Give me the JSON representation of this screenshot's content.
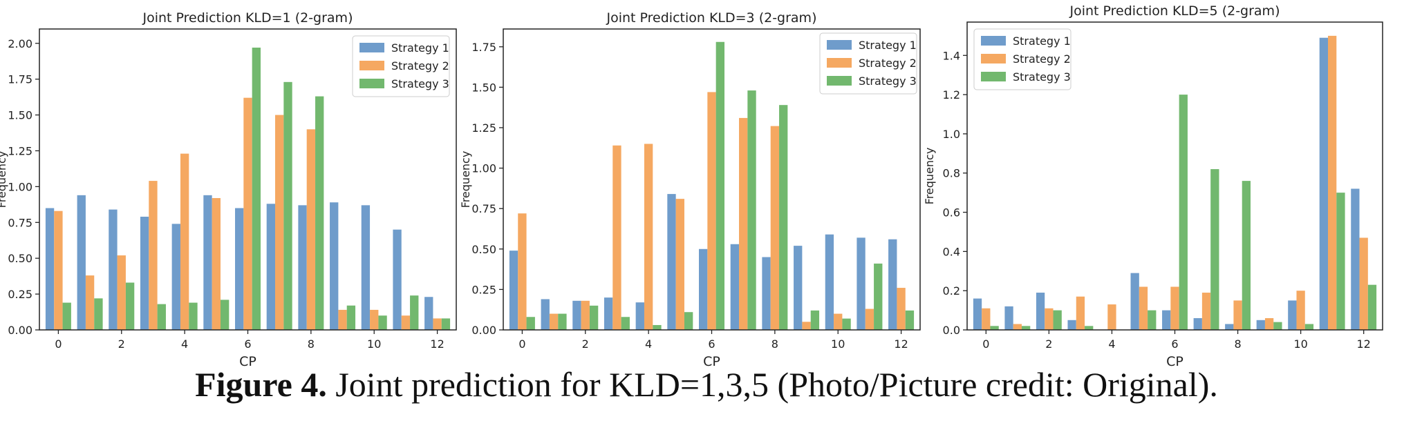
{
  "figure": {
    "caption_label": "Figure 4.",
    "caption_text": " Joint prediction for KLD=1,3,5 (Photo/Picture credit: Original)."
  },
  "colors": {
    "Strategy 1": "#6f9ccb",
    "Strategy 2": "#f5a861",
    "Strategy 3": "#72b86e"
  },
  "chart_data": [
    {
      "type": "bar",
      "title": "Joint Prediction KLD=1 (2-gram)",
      "xlabel": "CP",
      "ylabel": "Frequency",
      "categories": [
        0,
        1,
        2,
        3,
        4,
        5,
        6,
        7,
        8,
        9,
        10,
        11,
        12
      ],
      "x_ticks": [
        0,
        2,
        4,
        6,
        8,
        10,
        12
      ],
      "ylim": [
        0,
        2.1
      ],
      "y_ticks": [
        "0.00",
        "0.25",
        "0.50",
        "0.75",
        "1.00",
        "1.25",
        "1.50",
        "1.75",
        "2.00"
      ],
      "legend_position": "top-right",
      "series": [
        {
          "name": "Strategy 1",
          "values": [
            0.85,
            0.94,
            0.84,
            0.79,
            0.74,
            0.94,
            0.85,
            0.88,
            0.87,
            0.89,
            0.87,
            0.7,
            0.23
          ]
        },
        {
          "name": "Strategy 2",
          "values": [
            0.83,
            0.38,
            0.52,
            1.04,
            1.23,
            0.92,
            1.62,
            1.5,
            1.4,
            0.14,
            0.14,
            0.1,
            0.08
          ]
        },
        {
          "name": "Strategy 3",
          "values": [
            0.19,
            0.22,
            0.33,
            0.18,
            0.19,
            0.21,
            1.97,
            1.73,
            1.63,
            0.17,
            0.1,
            0.24,
            0.08
          ]
        }
      ]
    },
    {
      "type": "bar",
      "title": "Joint Prediction KLD=3 (2-gram)",
      "xlabel": "CP",
      "ylabel": "Frequency",
      "categories": [
        0,
        1,
        2,
        3,
        4,
        5,
        6,
        7,
        8,
        9,
        10,
        11,
        12
      ],
      "x_ticks": [
        0,
        2,
        4,
        6,
        8,
        10,
        12
      ],
      "ylim": [
        0,
        1.86
      ],
      "y_ticks": [
        "0.00",
        "0.25",
        "0.50",
        "0.75",
        "1.00",
        "1.25",
        "1.50",
        "1.75"
      ],
      "legend_position": "top-right",
      "series": [
        {
          "name": "Strategy 1",
          "values": [
            0.49,
            0.19,
            0.18,
            0.2,
            0.17,
            0.84,
            0.5,
            0.53,
            0.45,
            0.52,
            0.59,
            0.57,
            0.56
          ]
        },
        {
          "name": "Strategy 2",
          "values": [
            0.72,
            0.1,
            0.18,
            1.14,
            1.15,
            0.81,
            1.47,
            1.31,
            1.26,
            0.05,
            0.1,
            0.13,
            0.26
          ]
        },
        {
          "name": "Strategy 3",
          "values": [
            0.08,
            0.1,
            0.15,
            0.08,
            0.03,
            0.11,
            1.78,
            1.48,
            1.39,
            0.12,
            0.07,
            0.41,
            0.12
          ]
        }
      ]
    },
    {
      "type": "bar",
      "title": "Joint Prediction KLD=5 (2-gram)",
      "xlabel": "CP",
      "ylabel": "Frequency",
      "categories": [
        0,
        1,
        2,
        3,
        4,
        5,
        6,
        7,
        8,
        9,
        10,
        11,
        12
      ],
      "x_ticks": [
        0,
        2,
        4,
        6,
        8,
        10,
        12
      ],
      "ylim": [
        0,
        1.57
      ],
      "y_ticks": [
        "0.0",
        "0.2",
        "0.4",
        "0.6",
        "0.8",
        "1.0",
        "1.2",
        "1.4"
      ],
      "legend_position": "top-left",
      "series": [
        {
          "name": "Strategy 1",
          "values": [
            0.16,
            0.12,
            0.19,
            0.05,
            0.0,
            0.29,
            0.1,
            0.06,
            0.03,
            0.05,
            0.15,
            1.49,
            0.72
          ]
        },
        {
          "name": "Strategy 2",
          "values": [
            0.11,
            0.03,
            0.11,
            0.17,
            0.13,
            0.22,
            0.22,
            0.19,
            0.15,
            0.06,
            0.2,
            1.5,
            0.47
          ]
        },
        {
          "name": "Strategy 3",
          "values": [
            0.02,
            0.02,
            0.1,
            0.02,
            0.0,
            0.1,
            1.2,
            0.82,
            0.76,
            0.04,
            0.03,
            0.7,
            0.23
          ]
        }
      ]
    }
  ]
}
